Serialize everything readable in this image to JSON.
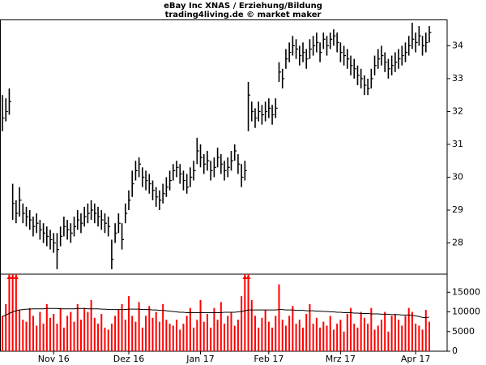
{
  "chart_data": [
    {
      "type": "ohlc",
      "title": "eBay Inc XNAS / Erziehung/Bildung",
      "subtitle": "trading4living.de © market maker",
      "color": "#000000",
      "close": [
        31.8,
        32.0,
        32.3,
        29.2,
        28.9,
        29.3,
        28.9,
        28.8,
        28.7,
        28.5,
        28.6,
        28.4,
        28.3,
        28.2,
        28.1,
        28.0,
        27.8,
        28.2,
        28.5,
        28.4,
        28.3,
        28.5,
        28.7,
        28.6,
        28.8,
        28.9,
        29.0,
        28.9,
        28.8,
        28.7,
        28.6,
        28.5,
        27.5,
        28.3,
        28.6,
        28.1,
        28.9,
        29.3,
        29.8,
        30.2,
        30.4,
        30.0,
        29.9,
        29.8,
        29.6,
        29.4,
        29.3,
        29.5,
        29.7,
        29.9,
        30.2,
        30.3,
        30.1,
        29.9,
        29.7,
        30.0,
        30.2,
        30.8,
        30.6,
        30.4,
        30.5,
        30.2,
        30.3,
        30.6,
        30.4,
        30.2,
        30.3,
        30.5,
        30.8,
        30.4,
        30.0,
        30.2,
        32.5,
        32.0,
        31.8,
        32.0,
        31.9,
        32.0,
        32.1,
        31.9,
        32.1,
        33.2,
        33.0,
        33.6,
        33.8,
        34.0,
        33.9,
        33.7,
        33.8,
        33.6,
        33.9,
        34.0,
        34.1,
        33.8,
        34.2,
        34.0,
        34.2,
        34.3,
        34.1,
        33.8,
        33.7,
        33.6,
        33.4,
        33.3,
        33.1,
        33.0,
        32.8,
        32.7,
        33.0,
        33.4,
        33.6,
        33.7,
        33.5,
        33.3,
        33.4,
        33.5,
        33.6,
        33.7,
        33.8,
        34.0,
        34.2,
        34.1,
        34.3,
        34.0,
        34.1,
        34.4
      ],
      "high": [
        32.5,
        32.4,
        32.7,
        29.8,
        29.3,
        29.7,
        29.2,
        29.1,
        29.0,
        28.8,
        28.9,
        28.7,
        28.6,
        28.5,
        28.4,
        28.3,
        28.3,
        28.5,
        28.8,
        28.7,
        28.6,
        28.8,
        29.0,
        28.9,
        29.1,
        29.2,
        29.3,
        29.2,
        29.1,
        29.0,
        28.9,
        28.8,
        28.1,
        28.6,
        28.9,
        28.6,
        29.2,
        29.6,
        30.2,
        30.5,
        30.6,
        30.3,
        30.2,
        30.1,
        29.9,
        29.7,
        29.6,
        29.8,
        30.0,
        30.2,
        30.4,
        30.5,
        30.4,
        30.2,
        30.1,
        30.3,
        30.5,
        31.2,
        31.0,
        30.7,
        30.8,
        30.5,
        30.6,
        30.9,
        30.7,
        30.5,
        30.6,
        30.8,
        31.0,
        30.7,
        30.4,
        30.5,
        32.9,
        32.3,
        32.1,
        32.3,
        32.2,
        32.3,
        32.4,
        32.2,
        32.4,
        33.5,
        33.3,
        33.9,
        34.1,
        34.3,
        34.2,
        34.0,
        34.1,
        33.9,
        34.2,
        34.3,
        34.4,
        34.1,
        34.4,
        34.3,
        34.4,
        34.5,
        34.4,
        34.1,
        34.0,
        33.9,
        33.7,
        33.6,
        33.4,
        33.3,
        33.1,
        33.0,
        33.3,
        33.7,
        33.9,
        34.0,
        33.8,
        33.6,
        33.7,
        33.8,
        33.9,
        34.0,
        34.1,
        34.3,
        34.7,
        34.4,
        34.6,
        34.3,
        34.4,
        34.6
      ],
      "low": [
        31.4,
        31.7,
        31.9,
        28.7,
        28.6,
        28.8,
        28.6,
        28.5,
        28.4,
        28.2,
        28.3,
        28.1,
        28.0,
        27.9,
        27.8,
        27.7,
        27.2,
        27.9,
        28.2,
        28.1,
        28.0,
        28.2,
        28.4,
        28.3,
        28.5,
        28.6,
        28.7,
        28.6,
        28.5,
        28.4,
        28.3,
        28.2,
        27.2,
        28.0,
        28.3,
        27.8,
        28.6,
        29.0,
        29.4,
        29.9,
        30.0,
        29.7,
        29.6,
        29.5,
        29.3,
        29.1,
        29.0,
        29.2,
        29.4,
        29.6,
        29.9,
        30.0,
        29.8,
        29.6,
        29.5,
        29.7,
        29.9,
        30.4,
        30.3,
        30.1,
        30.2,
        29.9,
        30.0,
        30.3,
        30.1,
        29.9,
        30.0,
        30.2,
        30.5,
        30.1,
        29.7,
        29.9,
        31.4,
        31.7,
        31.5,
        31.7,
        31.6,
        31.7,
        31.8,
        31.6,
        31.8,
        32.9,
        32.7,
        33.3,
        33.5,
        33.7,
        33.6,
        33.4,
        33.5,
        33.3,
        33.6,
        33.7,
        33.8,
        33.5,
        33.9,
        33.7,
        33.9,
        34.0,
        33.8,
        33.5,
        33.4,
        33.3,
        33.1,
        33.0,
        32.8,
        32.7,
        32.5,
        32.5,
        32.7,
        33.1,
        33.3,
        33.4,
        33.2,
        33.0,
        33.1,
        33.2,
        33.3,
        33.4,
        33.5,
        33.7,
        33.9,
        33.8,
        34.0,
        33.7,
        33.8,
        34.1
      ],
      "ylim": [
        27.05,
        34.8
      ],
      "yticks": [
        28,
        29,
        30,
        31,
        32,
        33,
        34
      ]
    },
    {
      "type": "bar",
      "color": "#ff0000",
      "ma_color": "#000000",
      "categories": [
        null,
        null,
        null,
        null,
        null,
        null,
        null,
        null,
        null,
        null,
        null,
        null,
        null,
        null,
        null,
        "Nov 16",
        null,
        null,
        null,
        null,
        null,
        null,
        null,
        null,
        null,
        null,
        null,
        null,
        null,
        null,
        null,
        null,
        null,
        null,
        null,
        null,
        null,
        "Dez 16",
        null,
        null,
        null,
        null,
        null,
        null,
        null,
        null,
        null,
        null,
        null,
        null,
        null,
        null,
        null,
        null,
        null,
        null,
        null,
        null,
        "Jan 17",
        null,
        null,
        null,
        null,
        null,
        null,
        null,
        null,
        null,
        null,
        null,
        null,
        null,
        null,
        null,
        null,
        null,
        null,
        null,
        "Feb 17",
        null,
        null,
        null,
        null,
        null,
        null,
        null,
        null,
        null,
        null,
        null,
        null,
        null,
        null,
        null,
        null,
        null,
        null,
        null,
        null,
        "Mrz 17",
        null,
        null,
        null,
        null,
        null,
        null,
        null,
        null,
        null,
        null,
        null,
        null,
        null,
        null,
        null,
        null,
        null,
        null,
        null,
        null,
        null,
        "Apr 17",
        null,
        null,
        null,
        null
      ],
      "values": [
        9000,
        12000,
        22000,
        22000,
        21000,
        10500,
        8000,
        7500,
        11000,
        9000,
        6500,
        10000,
        7000,
        12000,
        8500,
        9500,
        7000,
        11000,
        6000,
        9000,
        10000,
        7500,
        12000,
        8000,
        11000,
        10000,
        13000,
        8500,
        7000,
        9500,
        6000,
        5500,
        7000,
        9000,
        10500,
        12000,
        8000,
        14000,
        9000,
        7500,
        12500,
        6000,
        9000,
        11500,
        8500,
        10000,
        7500,
        12000,
        8000,
        7000,
        6500,
        8000,
        5500,
        7000,
        9000,
        11000,
        6000,
        8000,
        13000,
        7500,
        9500,
        6000,
        11000,
        8000,
        12500,
        7000,
        9000,
        10000,
        6500,
        8000,
        14000,
        21000,
        22000,
        13000,
        9000,
        6000,
        8500,
        10500,
        7500,
        6000,
        9000,
        17000,
        8000,
        6500,
        9000,
        11500,
        7000,
        8000,
        6000,
        9500,
        12000,
        7000,
        8500,
        6000,
        7500,
        6500,
        9000,
        5500,
        7000,
        8000,
        5000,
        9500,
        11000,
        7000,
        6000,
        10000,
        8500,
        7000,
        11000,
        5500,
        6500,
        8000,
        10000,
        5000,
        9000,
        9500,
        8000,
        6500,
        9000,
        11000,
        10000,
        7000,
        6500,
        5500,
        10500,
        7500
      ],
      "ma_values": [
        8800,
        9200,
        9600,
        10000,
        10300,
        10500,
        10600,
        10700,
        10700,
        10800,
        10800,
        10800,
        10800,
        10900,
        10900,
        10900,
        10900,
        10800,
        10800,
        10800,
        10800,
        10800,
        10900,
        10900,
        10900,
        10800,
        10800,
        10800,
        10800,
        10700,
        10700,
        10600,
        10600,
        10600,
        10600,
        10600,
        10600,
        10700,
        10700,
        10700,
        10700,
        10600,
        10600,
        10600,
        10500,
        10500,
        10400,
        10400,
        10300,
        10200,
        10100,
        10000,
        9900,
        9900,
        9800,
        9800,
        9800,
        9800,
        9800,
        9800,
        9800,
        9800,
        9800,
        9800,
        9800,
        9900,
        9900,
        9900,
        9900,
        10000,
        10100,
        10300,
        10500,
        10500,
        10500,
        10500,
        10500,
        10500,
        10500,
        10500,
        10500,
        10600,
        10600,
        10500,
        10500,
        10500,
        10400,
        10400,
        10400,
        10300,
        10300,
        10300,
        10200,
        10200,
        10100,
        10100,
        10000,
        10000,
        9900,
        9900,
        9800,
        9800,
        9800,
        9700,
        9700,
        9600,
        9600,
        9600,
        9500,
        9500,
        9500,
        9400,
        9400,
        9400,
        9300,
        9300,
        9300,
        9200,
        9200,
        9200,
        9100,
        9000,
        8800,
        8600,
        8500,
        8700
      ],
      "ylim": [
        0,
        19600
      ],
      "yticks": [
        0,
        5000,
        10000,
        15000
      ]
    }
  ]
}
